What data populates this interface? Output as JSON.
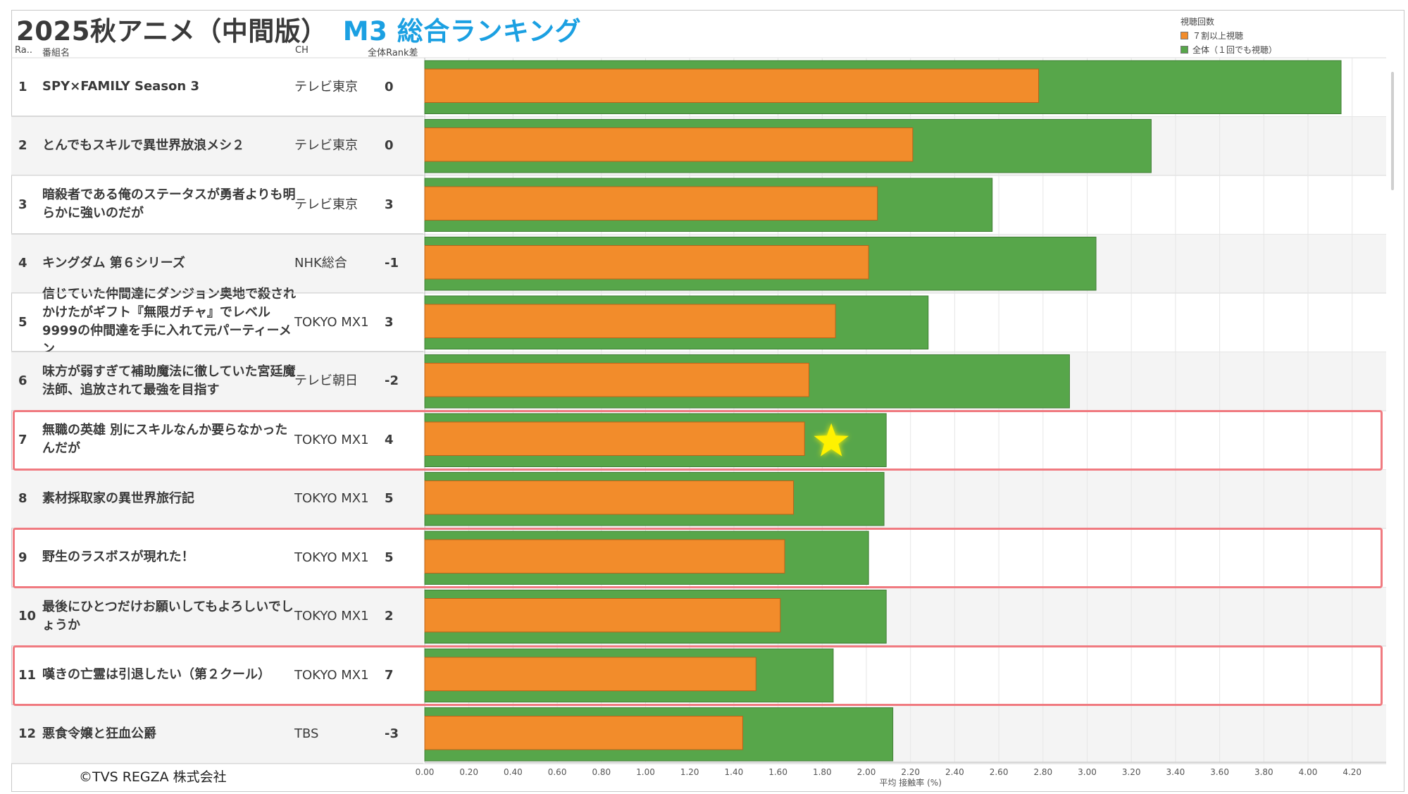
{
  "title": {
    "main": "2025秋アニメ（中間版）",
    "highlight": "M3 総合ランキング"
  },
  "columns": {
    "rank": "Ra..",
    "name": "番組名",
    "ch": "CH",
    "diff": "全体Rank差"
  },
  "legend": {
    "title": "視聴回数",
    "items": [
      {
        "label": "７割以上視聴",
        "color": "#f28c2b"
      },
      {
        "label": "全体（１回でも視聴）",
        "color": "#57a64a"
      }
    ]
  },
  "rows": [
    {
      "rank": "1",
      "name": "SPY×FAMILY Season 3",
      "ch": "テレビ東京",
      "diff": "0"
    },
    {
      "rank": "2",
      "name": "とんでもスキルで異世界放浪メシ２",
      "ch": "テレビ東京",
      "diff": "0"
    },
    {
      "rank": "3",
      "name": "暗殺者である俺のステータスが勇者よりも明らかに強いのだが",
      "ch": "テレビ東京",
      "diff": "3"
    },
    {
      "rank": "4",
      "name": "キングダム 第６シリーズ",
      "ch": "NHK総合",
      "diff": "-1"
    },
    {
      "rank": "5",
      "name": "信じていた仲間達にダンジョン奥地で殺されかけたがギフト『無限ガチャ』でレベル9999の仲間達を手に入れて元パーティーメン",
      "ch": "TOKYO MX1",
      "diff": "3"
    },
    {
      "rank": "6",
      "name": "味方が弱すぎて補助魔法に徹していた宮廷魔法師、追放されて最強を目指す",
      "ch": "テレビ朝日",
      "diff": "-2"
    },
    {
      "rank": "7",
      "name": "無職の英雄 別にスキルなんか要らなかったんだが",
      "ch": "TOKYO MX1",
      "diff": "4"
    },
    {
      "rank": "8",
      "name": "素材採取家の異世界旅行記",
      "ch": "TOKYO MX1",
      "diff": "5"
    },
    {
      "rank": "9",
      "name": "野生のラスボスが現れた！",
      "ch": "TOKYO MX1",
      "diff": "5"
    },
    {
      "rank": "10",
      "name": "最後にひとつだけお願いしてもよろしいでしょうか",
      "ch": "TOKYO MX1",
      "diff": "2"
    },
    {
      "rank": "11",
      "name": "嘆きの亡霊は引退したい（第２クール）",
      "ch": "TOKYO MX1",
      "diff": "7"
    },
    {
      "rank": "12",
      "name": "悪食令嬢と狂血公爵",
      "ch": "TBS",
      "diff": "-3"
    }
  ],
  "highlighted_ranks": [
    "7",
    "9",
    "11"
  ],
  "star_rank": "7",
  "chart_data": {
    "type": "bar",
    "orientation": "horizontal",
    "categories": [
      "1",
      "2",
      "3",
      "4",
      "5",
      "6",
      "7",
      "8",
      "9",
      "10",
      "11",
      "12"
    ],
    "series": [
      {
        "name": "全体（１回でも視聴）",
        "color": "#57a64a",
        "values": [
          4.15,
          3.29,
          2.57,
          3.04,
          2.28,
          2.92,
          2.09,
          2.08,
          2.01,
          2.09,
          1.85,
          2.12
        ]
      },
      {
        "name": "７割以上視聴",
        "color": "#f28c2b",
        "values": [
          2.78,
          2.21,
          2.05,
          2.01,
          1.86,
          1.74,
          1.72,
          1.67,
          1.63,
          1.61,
          1.5,
          1.44
        ]
      }
    ],
    "xlabel": "平均 接触率 (%)",
    "xlim": [
      0,
      4.35
    ],
    "xticks": [
      "0.00",
      "0.20",
      "0.40",
      "0.60",
      "0.80",
      "1.00",
      "1.20",
      "1.40",
      "1.60",
      "1.80",
      "2.00",
      "2.20",
      "2.40",
      "2.60",
      "2.80",
      "3.00",
      "3.20",
      "3.40",
      "3.60",
      "3.80",
      "4.00",
      "4.20"
    ],
    "grid": true
  },
  "copyright": "©TVS REGZA 株式会社"
}
